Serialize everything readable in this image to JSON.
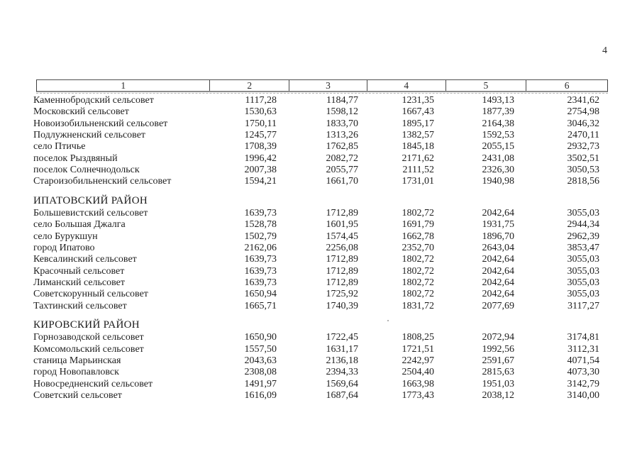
{
  "page": {
    "number": "4"
  },
  "table": {
    "header_cells": [
      "1",
      "2",
      "3",
      "4",
      "5",
      "6"
    ],
    "sections": [
      {
        "title": "",
        "rows": [
          [
            "Каменнобродский сельсовет",
            "1117,28",
            "1184,77",
            "1231,35",
            "1493,13",
            "2341,62"
          ],
          [
            "Московский сельсовет",
            "1530,63",
            "1598,12",
            "1667,43",
            "1877,39",
            "2754,98"
          ],
          [
            "Новоизобильненский сельсовет",
            "1750,11",
            "1833,70",
            "1895,17",
            "2164,38",
            "3046,32"
          ],
          [
            "Подлужненский сельсовет",
            "1245,77",
            "1313,26",
            "1382,57",
            "1592,53",
            "2470,11"
          ],
          [
            "село Птичье",
            "1708,39",
            "1762,85",
            "1845,18",
            "2055,15",
            "2932,73"
          ],
          [
            "поселок Рыздвяный",
            "1996,42",
            "2082,72",
            "2171,62",
            "2431,08",
            "3502,51"
          ],
          [
            "поселок Солнечнодольск",
            "2007,38",
            "2055,77",
            "2111,52",
            "2326,30",
            "3050,53"
          ],
          [
            "Староизобильненский сельсовет",
            "1594,21",
            "1661,70",
            "1731,01",
            "1940,98",
            "2818,56"
          ]
        ]
      },
      {
        "title": "ИПАТОВСКИЙ РАЙОН",
        "rows": [
          [
            "Большевистский сельсовет",
            "1639,73",
            "1712,89",
            "1802,72",
            "2042,64",
            "3055,03"
          ],
          [
            "село Большая Джалга",
            "1528,78",
            "1601,95",
            "1691,79",
            "1931,75",
            "2944,34"
          ],
          [
            "село Бурукшун",
            "1502,79",
            "1574,45",
            "1662,78",
            "1896,70",
            "2962,39"
          ],
          [
            "город Ипатово",
            "2162,06",
            "2256,08",
            "2352,70",
            "2643,04",
            "3853,47"
          ],
          [
            "Кевсалинский сельсовет",
            "1639,73",
            "1712,89",
            "1802,72",
            "2042,64",
            "3055,03"
          ],
          [
            "Красочный сельсовет",
            "1639,73",
            "1712,89",
            "1802,72",
            "2042,64",
            "3055,03"
          ],
          [
            "Лиманский сельсовет",
            "1639,73",
            "1712,89",
            "1802,72",
            "2042,64",
            "3055,03"
          ],
          [
            "Советскорунный сельсовет",
            "1650,94",
            "1725,92",
            "1802,72",
            "2042,64",
            "3055,03"
          ],
          [
            "Тахтинский сельсовет",
            "1665,71",
            "1740,39",
            "1831,72",
            "2077,69",
            "3117,27"
          ]
        ]
      },
      {
        "title": "КИРОВСКИЙ РАЙОН",
        "rows": [
          [
            "Горнозаводской сельсовет",
            "1650,90",
            "1722,45",
            "1808,25",
            "2072,94",
            "3174,81"
          ],
          [
            "Комсомольский сельсовет",
            "1557,50",
            "1631,17",
            "1721,51",
            "1992,56",
            "3112,31"
          ],
          [
            "станица Марьинская",
            "2043,63",
            "2136,18",
            "2242,97",
            "2591,67",
            "4071,54"
          ],
          [
            "город Новопавловск",
            "2308,08",
            "2394,33",
            "2504,40",
            "2815,63",
            "4073,30"
          ],
          [
            "Новосредненский сельсовет",
            "1491,97",
            "1569,64",
            "1663,98",
            "1951,03",
            "3142,79"
          ],
          [
            "Советский сельсовет",
            "1616,09",
            "1687,64",
            "1773,43",
            "2038,12",
            "3140,00"
          ]
        ]
      }
    ]
  }
}
